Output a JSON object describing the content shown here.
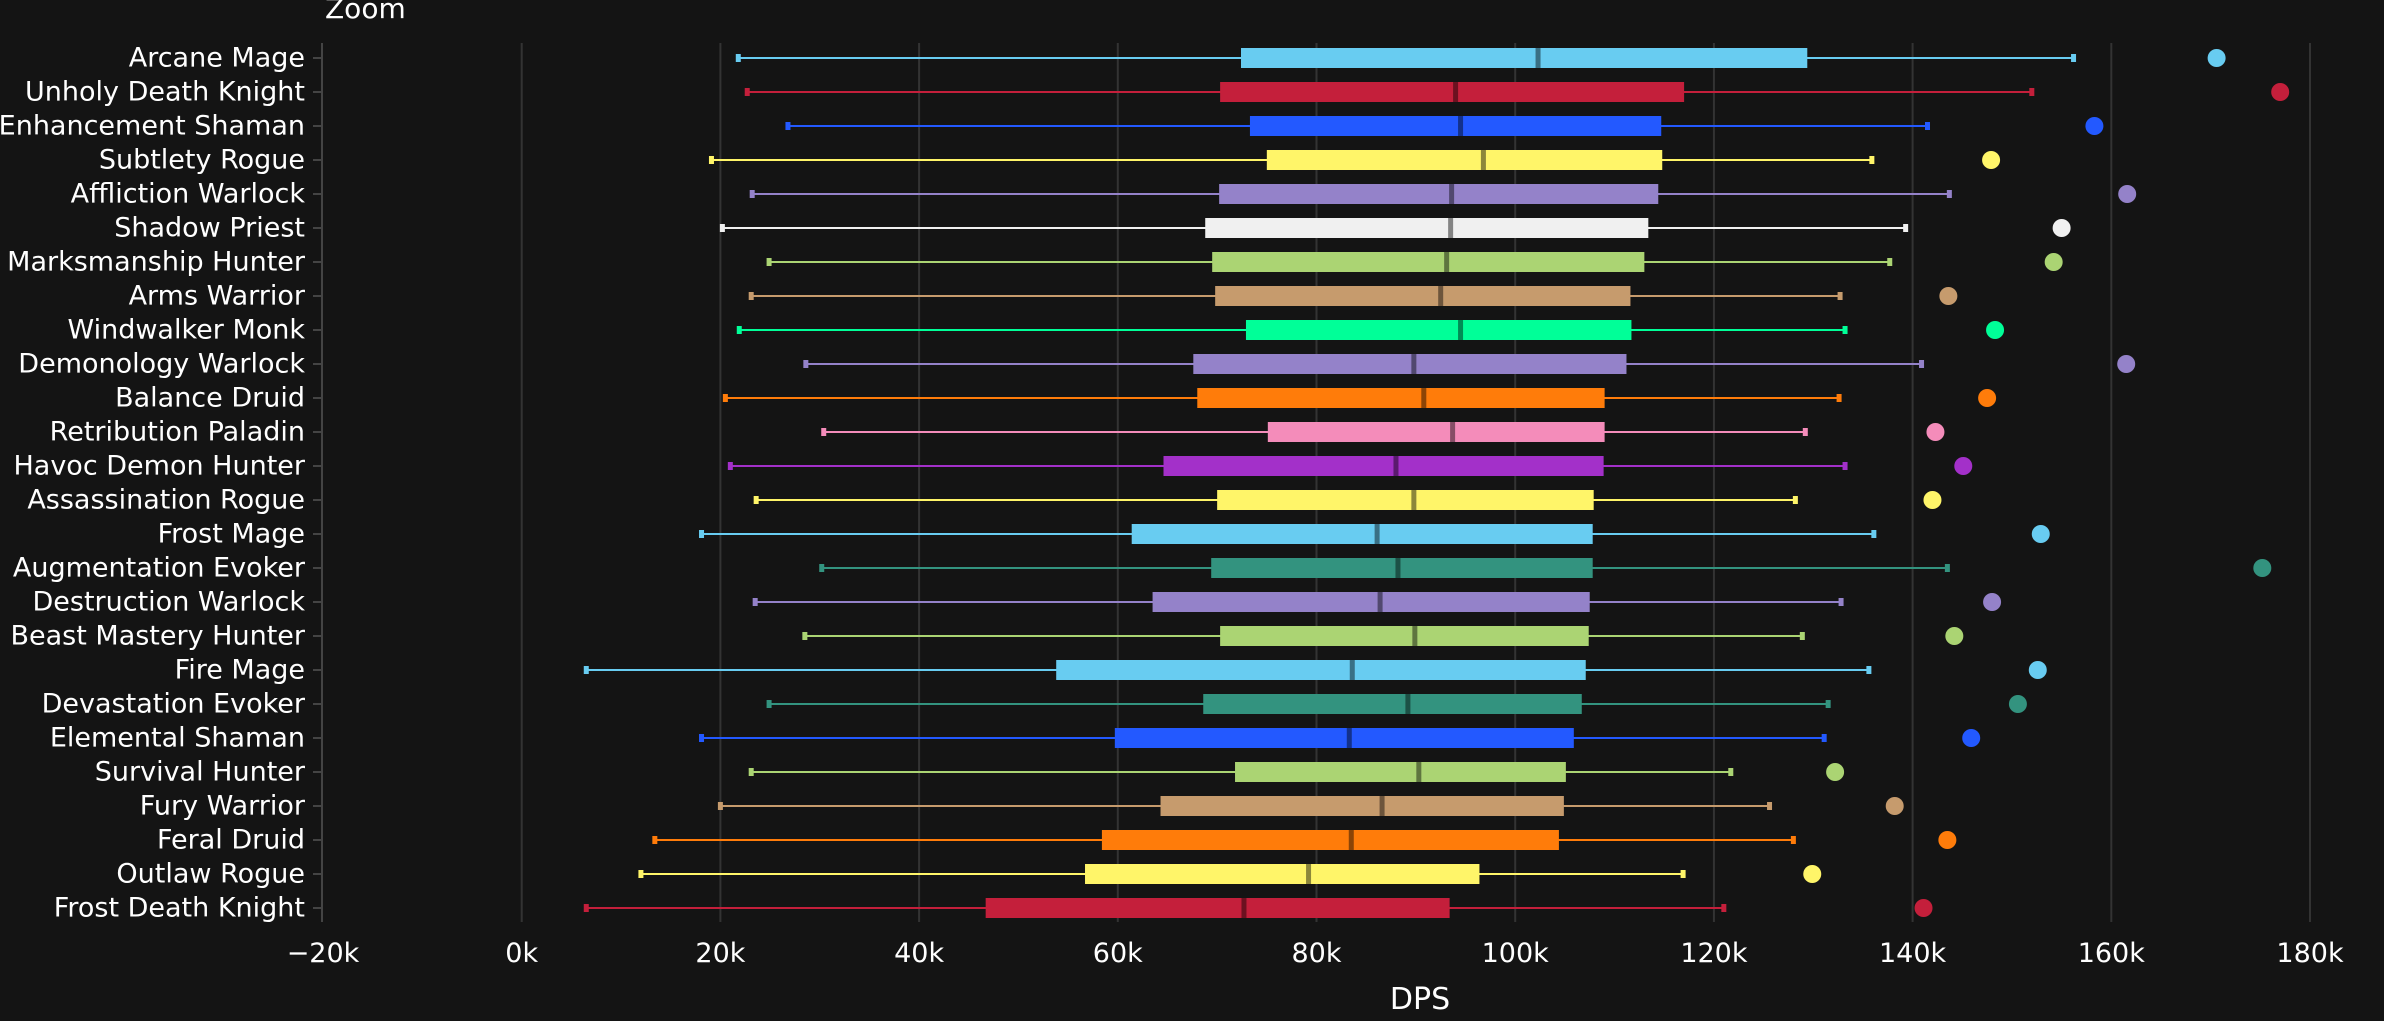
{
  "zoom_label": "Zoom",
  "chart_data": {
    "type": "box",
    "xlabel": "DPS",
    "ylabel": "",
    "xlim": [
      -20000,
      180000
    ],
    "grid": true,
    "x_ticks": [
      {
        "value": -20000,
        "label": "−20k"
      },
      {
        "value": 0,
        "label": "0k"
      },
      {
        "value": 20000,
        "label": "20k"
      },
      {
        "value": 40000,
        "label": "40k"
      },
      {
        "value": 60000,
        "label": "60k"
      },
      {
        "value": 80000,
        "label": "80k"
      },
      {
        "value": 100000,
        "label": "100k"
      },
      {
        "value": 120000,
        "label": "120k"
      },
      {
        "value": 140000,
        "label": "140k"
      },
      {
        "value": 160000,
        "label": "160k"
      },
      {
        "value": 180000,
        "label": "180k"
      }
    ],
    "series": [
      {
        "name": "Arcane Mage",
        "color": "#68ccf1",
        "min": 21800,
        "q1": 72400,
        "median": 102300,
        "q3": 129400,
        "max": 156200,
        "outlier": 170600
      },
      {
        "name": "Unholy Death Knight",
        "color": "#c41f3b",
        "min": 22700,
        "q1": 70300,
        "median": 94000,
        "q3": 117000,
        "max": 152000,
        "outlier": 177000
      },
      {
        "name": "Enhancement Shaman",
        "color": "#2359ff",
        "min": 26800,
        "q1": 73300,
        "median": 94500,
        "q3": 114700,
        "max": 141500,
        "outlier": 158300
      },
      {
        "name": "Subtlety Rogue",
        "color": "#fff569",
        "min": 19100,
        "q1": 75000,
        "median": 96800,
        "q3": 114800,
        "max": 135900,
        "outlier": 147900
      },
      {
        "name": "Affliction Warlock",
        "color": "#9482c9",
        "min": 23200,
        "q1": 70200,
        "median": 93600,
        "q3": 114400,
        "max": 143700,
        "outlier": 161600
      },
      {
        "name": "Shadow Priest",
        "color": "#f0f0f0",
        "min": 20200,
        "q1": 68800,
        "median": 93500,
        "q3": 113400,
        "max": 139300,
        "outlier": 155000
      },
      {
        "name": "Marksmanship Hunter",
        "color": "#abd473",
        "min": 24900,
        "q1": 69500,
        "median": 93100,
        "q3": 113000,
        "max": 137700,
        "outlier": 154200
      },
      {
        "name": "Arms Warrior",
        "color": "#c69b6d",
        "min": 23100,
        "q1": 69800,
        "median": 92500,
        "q3": 111600,
        "max": 132700,
        "outlier": 143600
      },
      {
        "name": "Windwalker Monk",
        "color": "#00ff98",
        "min": 21900,
        "q1": 72900,
        "median": 94500,
        "q3": 111700,
        "max": 133200,
        "outlier": 148300
      },
      {
        "name": "Demonology Warlock",
        "color": "#9482c9",
        "min": 28600,
        "q1": 67600,
        "median": 89800,
        "q3": 111200,
        "max": 140900,
        "outlier": 161500
      },
      {
        "name": "Balance Druid",
        "color": "#ff7c0a",
        "min": 20500,
        "q1": 68000,
        "median": 90800,
        "q3": 109000,
        "max": 132600,
        "outlier": 147500
      },
      {
        "name": "Retribution Paladin",
        "color": "#f48cba",
        "min": 30400,
        "q1": 75100,
        "median": 93700,
        "q3": 109000,
        "max": 129200,
        "outlier": 142300
      },
      {
        "name": "Havoc Demon Hunter",
        "color": "#a330c9",
        "min": 21000,
        "q1": 64600,
        "median": 88000,
        "q3": 108900,
        "max": 133200,
        "outlier": 145100
      },
      {
        "name": "Assassination Rogue",
        "color": "#fff569",
        "min": 23600,
        "q1": 70000,
        "median": 89800,
        "q3": 107900,
        "max": 128200,
        "outlier": 142000
      },
      {
        "name": "Frost Mage",
        "color": "#68ccf1",
        "min": 18100,
        "q1": 61400,
        "median": 86100,
        "q3": 107800,
        "max": 136100,
        "outlier": 152900
      },
      {
        "name": "Augmentation Evoker",
        "color": "#33937f",
        "min": 30200,
        "q1": 69400,
        "median": 88200,
        "q3": 107800,
        "max": 143500,
        "outlier": 175200
      },
      {
        "name": "Destruction Warlock",
        "color": "#9482c9",
        "min": 23500,
        "q1": 63500,
        "median": 86400,
        "q3": 107500,
        "max": 132800,
        "outlier": 148000
      },
      {
        "name": "Beast Mastery Hunter",
        "color": "#abd473",
        "min": 28500,
        "q1": 70300,
        "median": 89900,
        "q3": 107400,
        "max": 128900,
        "outlier": 144200
      },
      {
        "name": "Fire Mage",
        "color": "#68ccf1",
        "min": 6500,
        "q1": 53800,
        "median": 83600,
        "q3": 107100,
        "max": 135600,
        "outlier": 152600
      },
      {
        "name": "Devastation Evoker",
        "color": "#33937f",
        "min": 24900,
        "q1": 68600,
        "median": 89200,
        "q3": 106700,
        "max": 131500,
        "outlier": 150600
      },
      {
        "name": "Elemental Shaman",
        "color": "#2359ff",
        "min": 18100,
        "q1": 59700,
        "median": 83300,
        "q3": 105900,
        "max": 131100,
        "outlier": 145900
      },
      {
        "name": "Survival Hunter",
        "color": "#abd473",
        "min": 23100,
        "q1": 71800,
        "median": 90300,
        "q3": 105100,
        "max": 121700,
        "outlier": 132200
      },
      {
        "name": "Fury Warrior",
        "color": "#c69b6d",
        "min": 20000,
        "q1": 64300,
        "median": 86600,
        "q3": 104900,
        "max": 125600,
        "outlier": 138200
      },
      {
        "name": "Feral Druid",
        "color": "#ff7c0a",
        "min": 13400,
        "q1": 58400,
        "median": 83500,
        "q3": 104400,
        "max": 128000,
        "outlier": 143500
      },
      {
        "name": "Outlaw Rogue",
        "color": "#fff569",
        "min": 12000,
        "q1": 56700,
        "median": 79200,
        "q3": 96400,
        "max": 116900,
        "outlier": 129900
      },
      {
        "name": "Frost Death Knight",
        "color": "#c41f3b",
        "min": 6500,
        "q1": 46700,
        "median": 72700,
        "q3": 93400,
        "max": 121000,
        "outlier": 141100
      }
    ]
  }
}
